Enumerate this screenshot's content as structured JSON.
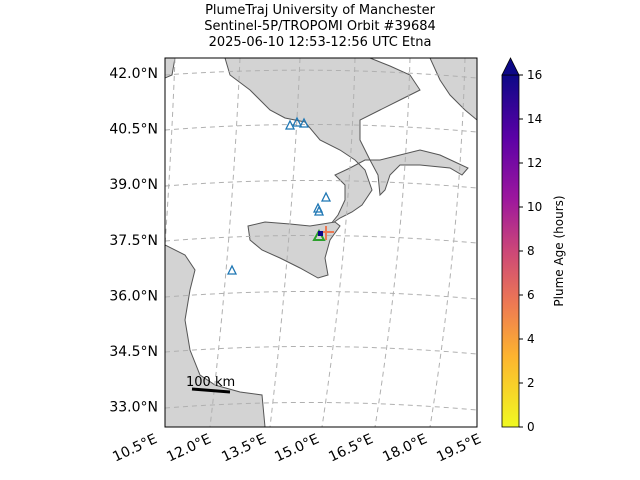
{
  "title": [
    "PlumeTraj    University of Manchester",
    "Sentinel-5P/TROPOMI Orbit #39684",
    "2025-06-10    12:53-12:56 UTC   Etna"
  ],
  "map": {
    "lat_labels": [
      "42.0°N",
      "40.5°N",
      "39.0°N",
      "37.5°N",
      "36.0°N",
      "34.5°N",
      "33.0°N"
    ],
    "lon_labels": [
      "10.5°E",
      "12.0°E",
      "13.5°E",
      "15.0°E",
      "16.5°E",
      "18.0°E",
      "19.5°E"
    ],
    "scale_bar": "100 km"
  },
  "colorbar": {
    "label": "Plume Age (hours)",
    "lim": [
      0,
      16
    ],
    "ticks": [
      0,
      2,
      4,
      6,
      8,
      10,
      12,
      14,
      16
    ]
  }
}
